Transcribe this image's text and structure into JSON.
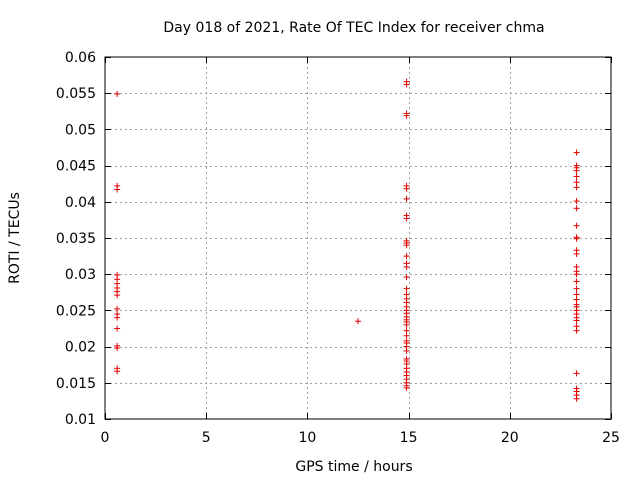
{
  "chart_data": {
    "type": "scatter",
    "title": "Day 018 of 2021, Rate Of TEC Index for receiver chma",
    "xlabel": "GPS time / hours",
    "ylabel": "ROTI / TECUs",
    "xlim": [
      0,
      25
    ],
    "ylim": [
      0.01,
      0.06
    ],
    "xticks": [
      0,
      5,
      10,
      15,
      20,
      25
    ],
    "xtick_labels": [
      "0",
      "5",
      "10",
      "15",
      "20",
      "25"
    ],
    "yticks": [
      0.01,
      0.015,
      0.02,
      0.025,
      0.03,
      0.035,
      0.04,
      0.045,
      0.05,
      0.055,
      0.06
    ],
    "ytick_labels": [
      "0.01",
      "0.015",
      "0.02",
      "0.025",
      "0.03",
      "0.035",
      "0.04",
      "0.045",
      "0.05",
      "0.055",
      "0.06"
    ],
    "grid": true,
    "marker": "+",
    "color": "#e00000",
    "series": [
      {
        "name": "ROTI",
        "points": [
          [
            0.6,
            0.0549
          ],
          [
            0.6,
            0.0422
          ],
          [
            0.6,
            0.0417
          ],
          [
            0.6,
            0.0299
          ],
          [
            0.6,
            0.0293
          ],
          [
            0.6,
            0.0287
          ],
          [
            0.6,
            0.0281
          ],
          [
            0.6,
            0.0276
          ],
          [
            0.6,
            0.0271
          ],
          [
            0.6,
            0.0252
          ],
          [
            0.6,
            0.0245
          ],
          [
            0.6,
            0.024
          ],
          [
            0.6,
            0.0225
          ],
          [
            0.6,
            0.0201
          ],
          [
            0.6,
            0.0198
          ],
          [
            0.6,
            0.017
          ],
          [
            0.6,
            0.0166
          ],
          [
            12.5,
            0.0235
          ],
          [
            14.9,
            0.0566
          ],
          [
            14.9,
            0.0562
          ],
          [
            14.9,
            0.0522
          ],
          [
            14.9,
            0.0519
          ],
          [
            14.9,
            0.0422
          ],
          [
            14.9,
            0.0418
          ],
          [
            14.9,
            0.0404
          ],
          [
            14.9,
            0.0381
          ],
          [
            14.9,
            0.0377
          ],
          [
            14.9,
            0.0346
          ],
          [
            14.9,
            0.0343
          ],
          [
            14.9,
            0.034
          ],
          [
            14.9,
            0.0325
          ],
          [
            14.9,
            0.0315
          ],
          [
            14.9,
            0.031
          ],
          [
            14.9,
            0.0296
          ],
          [
            14.9,
            0.028
          ],
          [
            14.9,
            0.0272
          ],
          [
            14.9,
            0.0266
          ],
          [
            14.9,
            0.0261
          ],
          [
            14.9,
            0.0255
          ],
          [
            14.9,
            0.025
          ],
          [
            14.9,
            0.0246
          ],
          [
            14.9,
            0.0241
          ],
          [
            14.9,
            0.0237
          ],
          [
            14.9,
            0.0234
          ],
          [
            14.9,
            0.023
          ],
          [
            14.9,
            0.0222
          ],
          [
            14.9,
            0.0215
          ],
          [
            14.9,
            0.0208
          ],
          [
            14.9,
            0.0205
          ],
          [
            14.9,
            0.02
          ],
          [
            14.9,
            0.0194
          ],
          [
            14.9,
            0.0183
          ],
          [
            14.9,
            0.018
          ],
          [
            14.9,
            0.0176
          ],
          [
            14.9,
            0.017
          ],
          [
            14.9,
            0.0165
          ],
          [
            14.9,
            0.016
          ],
          [
            14.9,
            0.0155
          ],
          [
            14.9,
            0.015
          ],
          [
            14.9,
            0.0146
          ],
          [
            14.9,
            0.0143
          ],
          [
            23.3,
            0.0468
          ],
          [
            23.3,
            0.045
          ],
          [
            23.3,
            0.0447
          ],
          [
            23.3,
            0.0443
          ],
          [
            23.3,
            0.0435
          ],
          [
            23.3,
            0.0427
          ],
          [
            23.3,
            0.042
          ],
          [
            23.3,
            0.0401
          ],
          [
            23.3,
            0.0391
          ],
          [
            23.3,
            0.0367
          ],
          [
            23.3,
            0.0351
          ],
          [
            23.3,
            0.0349
          ],
          [
            23.3,
            0.0333
          ],
          [
            23.3,
            0.0328
          ],
          [
            23.3,
            0.031
          ],
          [
            23.3,
            0.0304
          ],
          [
            23.3,
            0.03
          ],
          [
            23.3,
            0.029
          ],
          [
            23.3,
            0.028
          ],
          [
            23.3,
            0.0272
          ],
          [
            23.3,
            0.0265
          ],
          [
            23.3,
            0.0258
          ],
          [
            23.3,
            0.0255
          ],
          [
            23.3,
            0.025
          ],
          [
            23.3,
            0.0245
          ],
          [
            23.3,
            0.024
          ],
          [
            23.3,
            0.0236
          ],
          [
            23.3,
            0.0228
          ],
          [
            23.3,
            0.0222
          ],
          [
            23.3,
            0.0163
          ],
          [
            23.3,
            0.0142
          ],
          [
            23.3,
            0.0138
          ],
          [
            23.3,
            0.0133
          ],
          [
            23.3,
            0.0128
          ]
        ]
      }
    ]
  }
}
